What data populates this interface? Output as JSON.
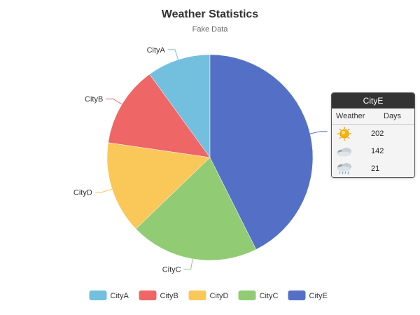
{
  "chart_data": {
    "type": "pie",
    "title": "Weather Statistics",
    "subtitle": "Fake Data",
    "legend_position": "bottom",
    "slices": [
      {
        "name": "CityA",
        "value": 10,
        "color": "#73c0de"
      },
      {
        "name": "CityB",
        "value": 12.7,
        "color": "#ee6666"
      },
      {
        "name": "CityD",
        "value": 14.5,
        "color": "#fac858"
      },
      {
        "name": "CityC",
        "value": 20.2,
        "color": "#91cc75"
      },
      {
        "name": "CityE",
        "value": 42.6,
        "color": "#5470c6"
      }
    ],
    "legend": [
      "CityA",
      "CityB",
      "CityD",
      "CityC",
      "CityE"
    ]
  },
  "tooltip": {
    "title": "CityE",
    "header_weather": "Weather",
    "header_days": "Days",
    "rows": [
      {
        "icon": "sunny-icon",
        "days": "202"
      },
      {
        "icon": "cloudy-icon",
        "days": "142"
      },
      {
        "icon": "showers-icon",
        "days": "21"
      }
    ]
  }
}
